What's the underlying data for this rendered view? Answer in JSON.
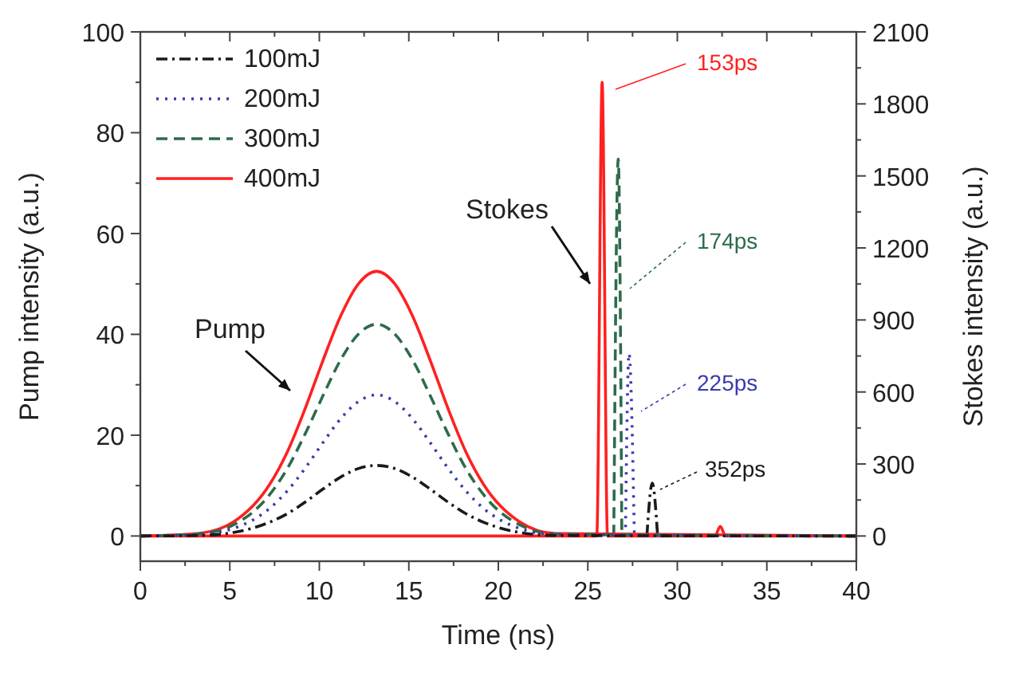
{
  "chart_data": {
    "type": "line",
    "xlabel": "Time (ns)",
    "ylabel": "Pump intensity (a.u.)",
    "y2label": "Stokes intensity (a.u.)",
    "xlim": [
      0,
      40
    ],
    "xticks": [
      0,
      5,
      10,
      15,
      20,
      25,
      30,
      35,
      40
    ],
    "ylim": [
      -5,
      100
    ],
    "yticks": [
      0,
      20,
      40,
      60,
      80,
      100
    ],
    "y2lim": [
      -105,
      2100
    ],
    "y2ticks": [
      0,
      300,
      600,
      900,
      1200,
      1500,
      1800,
      2100
    ],
    "legend": "top left",
    "grid": false,
    "marker": "none",
    "series": [
      {
        "name": "100mJ",
        "color": "#1a1a1a",
        "line_style": "dashdot",
        "x": [
          0,
          3.2,
          5.2,
          7.2,
          8.2,
          9.2,
          10.2,
          11.2,
          12.2,
          13.2,
          14.2,
          15.2,
          16.2,
          17.2,
          18.2,
          19.2,
          21.2,
          23.2,
          40
        ],
        "values": [
          0,
          0.1,
          0.7,
          2.7,
          4.4,
          6.7,
          9.3,
          11.7,
          13.4,
          14,
          13.4,
          11.7,
          9.3,
          6.7,
          4.4,
          2.7,
          0.7,
          0.1,
          0
        ]
      },
      {
        "name": "200mJ",
        "color": "#3a3ab0",
        "line_style": "dotted",
        "x": [
          0,
          3.2,
          5.2,
          7.2,
          8.2,
          9.2,
          10.2,
          11.2,
          12.2,
          13.2,
          14.2,
          15.2,
          16.2,
          17.2,
          18.2,
          19.2,
          21.2,
          23.2,
          40
        ],
        "values": [
          0,
          0.3,
          1.5,
          5.4,
          8.9,
          13.4,
          18.5,
          23.3,
          26.7,
          28,
          26.7,
          23.3,
          18.5,
          13.4,
          8.9,
          5.4,
          1.5,
          0.3,
          0
        ]
      },
      {
        "name": "300mJ",
        "color": "#2e6b4a",
        "line_style": "dashed",
        "x": [
          0,
          3.2,
          5.2,
          7.2,
          8.2,
          9.2,
          10.2,
          11.2,
          12.2,
          13.2,
          14.2,
          15.2,
          16.2,
          17.2,
          18.2,
          19.2,
          21.2,
          23.2,
          40
        ],
        "values": [
          0,
          0.4,
          2.2,
          8.1,
          13.3,
          20.2,
          27.8,
          35,
          40.1,
          42,
          40.1,
          35,
          27.8,
          20.2,
          13.3,
          8.1,
          2.2,
          0.4,
          0
        ]
      },
      {
        "name": "400mJ",
        "color": "#ff2020",
        "line_style": "solid",
        "x": [
          0,
          3.2,
          5.2,
          7.2,
          8.2,
          9.2,
          10.2,
          11.2,
          12.2,
          13.2,
          14.2,
          15.2,
          16.2,
          17.2,
          18.2,
          19.2,
          21.2,
          23.2,
          40
        ],
        "values": [
          0,
          0.5,
          2.8,
          10.1,
          16.6,
          25.2,
          34.8,
          43.7,
          50.1,
          52.5,
          50.1,
          43.7,
          34.8,
          25.2,
          16.6,
          10.1,
          2.8,
          0.5,
          0
        ]
      },
      {
        "color": "#1a1a1a",
        "line_style": "dashdot",
        "axis": "y2",
        "x": [
          28.3,
          28.6,
          28.9
        ],
        "values": [
          0,
          220,
          0
        ]
      },
      {
        "color": "#3a3ab0",
        "line_style": "dotted",
        "axis": "y2",
        "x": [
          27.1,
          27.3,
          27.6
        ],
        "values": [
          0,
          760,
          0
        ]
      },
      {
        "color": "#2e6b4a",
        "line_style": "dashed",
        "axis": "y2",
        "x": [
          26.45,
          26.7,
          26.9
        ],
        "values": [
          0,
          1570,
          0
        ]
      },
      {
        "color": "#ff2020",
        "line_style": "solid",
        "axis": "y2",
        "x": [
          0,
          25.5,
          25.8,
          26.1,
          26.5,
          32.1,
          32.4,
          32.7,
          40
        ],
        "values": [
          0,
          0,
          1890,
          0,
          0,
          0,
          40,
          0,
          0
        ]
      }
    ],
    "annotations": [
      "153ps",
      "174ps",
      "225ps",
      "352ps",
      "Pump",
      "Stokes"
    ]
  }
}
